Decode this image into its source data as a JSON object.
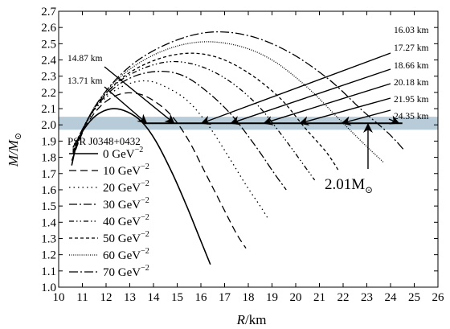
{
  "chart_data": {
    "type": "line",
    "xlabel_italic": "R",
    "xlabel_unit": "/km",
    "ylabel_italic": "M/M",
    "ylabel_sub": "⊙",
    "xlim": [
      10,
      26
    ],
    "ylim": [
      1.0,
      2.7
    ],
    "xticks": [
      "10",
      "11",
      "12",
      "13",
      "14",
      "15",
      "16",
      "17",
      "18",
      "19",
      "20",
      "21",
      "22",
      "23",
      "24",
      "25",
      "26"
    ],
    "yticks": [
      "1.0",
      "1.1",
      "1.2",
      "1.3",
      "1.4",
      "1.5",
      "1.6",
      "1.7",
      "1.8",
      "1.9",
      "2.0",
      "2.1",
      "2.2",
      "2.3",
      "2.4",
      "2.5",
      "2.6",
      "2.7"
    ],
    "grid": false,
    "band": {
      "y_low": 1.97,
      "y_high": 2.05,
      "color": "#b7ccd8"
    },
    "reference_line": {
      "y": 2.01
    },
    "legend": {
      "title": "PSR J0348+0432",
      "placement": "left-middle",
      "unit": "GeV",
      "exponent": "−2"
    },
    "series": [
      {
        "name": "0",
        "dash": "solid",
        "points": [
          [
            10.55,
            1.75
          ],
          [
            10.8,
            1.9
          ],
          [
            11.2,
            2.0
          ],
          [
            11.7,
            2.07
          ],
          [
            12.3,
            2.1
          ],
          [
            12.9,
            2.08
          ],
          [
            13.5,
            2.02
          ],
          [
            14.1,
            1.9
          ],
          [
            14.8,
            1.7
          ],
          [
            15.4,
            1.5
          ],
          [
            15.9,
            1.32
          ],
          [
            16.4,
            1.14
          ]
        ]
      },
      {
        "name": "10",
        "dash": "9,5",
        "points": [
          [
            10.55,
            1.78
          ],
          [
            11.1,
            1.98
          ],
          [
            11.8,
            2.12
          ],
          [
            12.6,
            2.19
          ],
          [
            13.4,
            2.19
          ],
          [
            14.1,
            2.14
          ],
          [
            14.8,
            2.05
          ],
          [
            15.5,
            1.9
          ],
          [
            16.2,
            1.7
          ],
          [
            16.9,
            1.5
          ],
          [
            17.5,
            1.33
          ],
          [
            17.9,
            1.24
          ]
        ]
      },
      {
        "name": "20",
        "dash": "1.5,4",
        "points": [
          [
            10.6,
            1.8
          ],
          [
            11.2,
            2.02
          ],
          [
            12.0,
            2.17
          ],
          [
            12.9,
            2.25
          ],
          [
            13.8,
            2.27
          ],
          [
            14.7,
            2.22
          ],
          [
            15.5,
            2.14
          ],
          [
            16.3,
            2.0
          ],
          [
            17.1,
            1.82
          ],
          [
            17.9,
            1.63
          ],
          [
            18.5,
            1.5
          ],
          [
            18.8,
            1.43
          ]
        ]
      },
      {
        "name": "30",
        "dash": "10,3,2,3",
        "points": [
          [
            10.6,
            1.82
          ],
          [
            11.3,
            2.05
          ],
          [
            12.2,
            2.21
          ],
          [
            13.2,
            2.3
          ],
          [
            14.3,
            2.33
          ],
          [
            15.3,
            2.3
          ],
          [
            16.3,
            2.2
          ],
          [
            17.3,
            2.06
          ],
          [
            18.3,
            1.87
          ],
          [
            19.1,
            1.7
          ],
          [
            19.6,
            1.6
          ]
        ]
      },
      {
        "name": "40",
        "dash": "6,3,1.5,3,1.5,3",
        "points": [
          [
            10.6,
            1.83
          ],
          [
            11.4,
            2.08
          ],
          [
            12.4,
            2.25
          ],
          [
            13.6,
            2.35
          ],
          [
            14.8,
            2.39
          ],
          [
            16.0,
            2.36
          ],
          [
            17.2,
            2.27
          ],
          [
            18.4,
            2.12
          ],
          [
            19.5,
            1.92
          ],
          [
            20.4,
            1.74
          ],
          [
            20.8,
            1.66
          ]
        ]
      },
      {
        "name": "50",
        "dash": "4,3",
        "points": [
          [
            10.6,
            1.84
          ],
          [
            11.5,
            2.1
          ],
          [
            12.6,
            2.28
          ],
          [
            13.9,
            2.39
          ],
          [
            15.3,
            2.44
          ],
          [
            16.6,
            2.42
          ],
          [
            17.9,
            2.33
          ],
          [
            19.3,
            2.17
          ],
          [
            20.4,
            1.98
          ],
          [
            21.3,
            1.83
          ],
          [
            21.8,
            1.72
          ]
        ]
      },
      {
        "name": "60",
        "dash": "1,1.6",
        "points": [
          [
            10.6,
            1.85
          ],
          [
            11.6,
            2.13
          ],
          [
            12.8,
            2.32
          ],
          [
            14.3,
            2.45
          ],
          [
            15.9,
            2.51
          ],
          [
            17.5,
            2.49
          ],
          [
            19.0,
            2.4
          ],
          [
            20.5,
            2.23
          ],
          [
            21.8,
            2.04
          ],
          [
            22.9,
            1.88
          ],
          [
            23.7,
            1.77
          ]
        ]
      },
      {
        "name": "70",
        "dash": "11,3,2,3",
        "points": [
          [
            10.6,
            1.86
          ],
          [
            11.7,
            2.15
          ],
          [
            13.0,
            2.36
          ],
          [
            14.6,
            2.5
          ],
          [
            16.3,
            2.57
          ],
          [
            18.0,
            2.55
          ],
          [
            19.7,
            2.45
          ],
          [
            21.4,
            2.28
          ],
          [
            22.8,
            2.09
          ],
          [
            23.9,
            1.95
          ],
          [
            24.6,
            1.84
          ]
        ]
      }
    ],
    "radius_annotations": [
      {
        "label": "14.87 km",
        "target_x": 14.87
      },
      {
        "label": "13.71 km",
        "target_x": 13.71
      },
      {
        "label": "16.03 km",
        "target_x": 16.03
      },
      {
        "label": "17.27 km",
        "target_x": 17.27
      },
      {
        "label": "18.66 km",
        "target_x": 18.66
      },
      {
        "label": "20.18 km",
        "target_x": 20.18
      },
      {
        "label": "21.95 km",
        "target_x": 21.95
      },
      {
        "label": "24.35 km",
        "target_x": 24.35
      }
    ],
    "mass_annotation": {
      "label": "2.01M",
      "sub": "⊙",
      "target_x": 23.05
    }
  }
}
